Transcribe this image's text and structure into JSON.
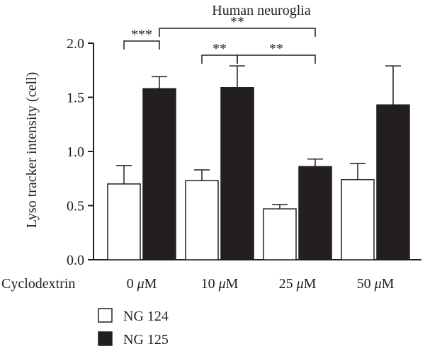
{
  "chart_data": {
    "type": "bar",
    "title": "Human neuroglia",
    "ylabel": "Lyso tracker intensity (cell)",
    "xlabel": "",
    "group_label": "Cyclodextrin",
    "categories": [
      "0 μM",
      "10 μM",
      "25 μM",
      "50 μM"
    ],
    "category_values": [
      "0",
      "10",
      "25",
      "50"
    ],
    "category_unit": "μM",
    "ylim": [
      0,
      2.0
    ],
    "yticks": [
      "0.0",
      "0.5",
      "1.0",
      "1.5",
      "2.0"
    ],
    "ytick_values": [
      0,
      0.5,
      1.0,
      1.5,
      2.0
    ],
    "grid": false,
    "legend_position": "bottom-left",
    "series": [
      {
        "name": "NG 124",
        "values": [
          0.7,
          0.73,
          0.47,
          0.74
        ],
        "errors": [
          0.17,
          0.1,
          0.04,
          0.15
        ],
        "fill": "#ffffff",
        "stroke": "#231f20"
      },
      {
        "name": "NG 125",
        "values": [
          1.58,
          1.59,
          0.86,
          1.43
        ],
        "errors": [
          0.11,
          0.2,
          0.07,
          0.36
        ],
        "fill": "#231f20",
        "stroke": "#231f20"
      }
    ],
    "significance": [
      {
        "label": "***",
        "from": [
          0,
          0
        ],
        "to": [
          0,
          1
        ]
      },
      {
        "label": "**",
        "from": [
          0,
          1
        ],
        "to": [
          2,
          1
        ]
      },
      {
        "label": "**",
        "from": [
          1,
          0
        ],
        "to": [
          1,
          1
        ]
      },
      {
        "label": "**",
        "from": [
          1,
          1
        ],
        "to": [
          2,
          1
        ]
      }
    ]
  }
}
